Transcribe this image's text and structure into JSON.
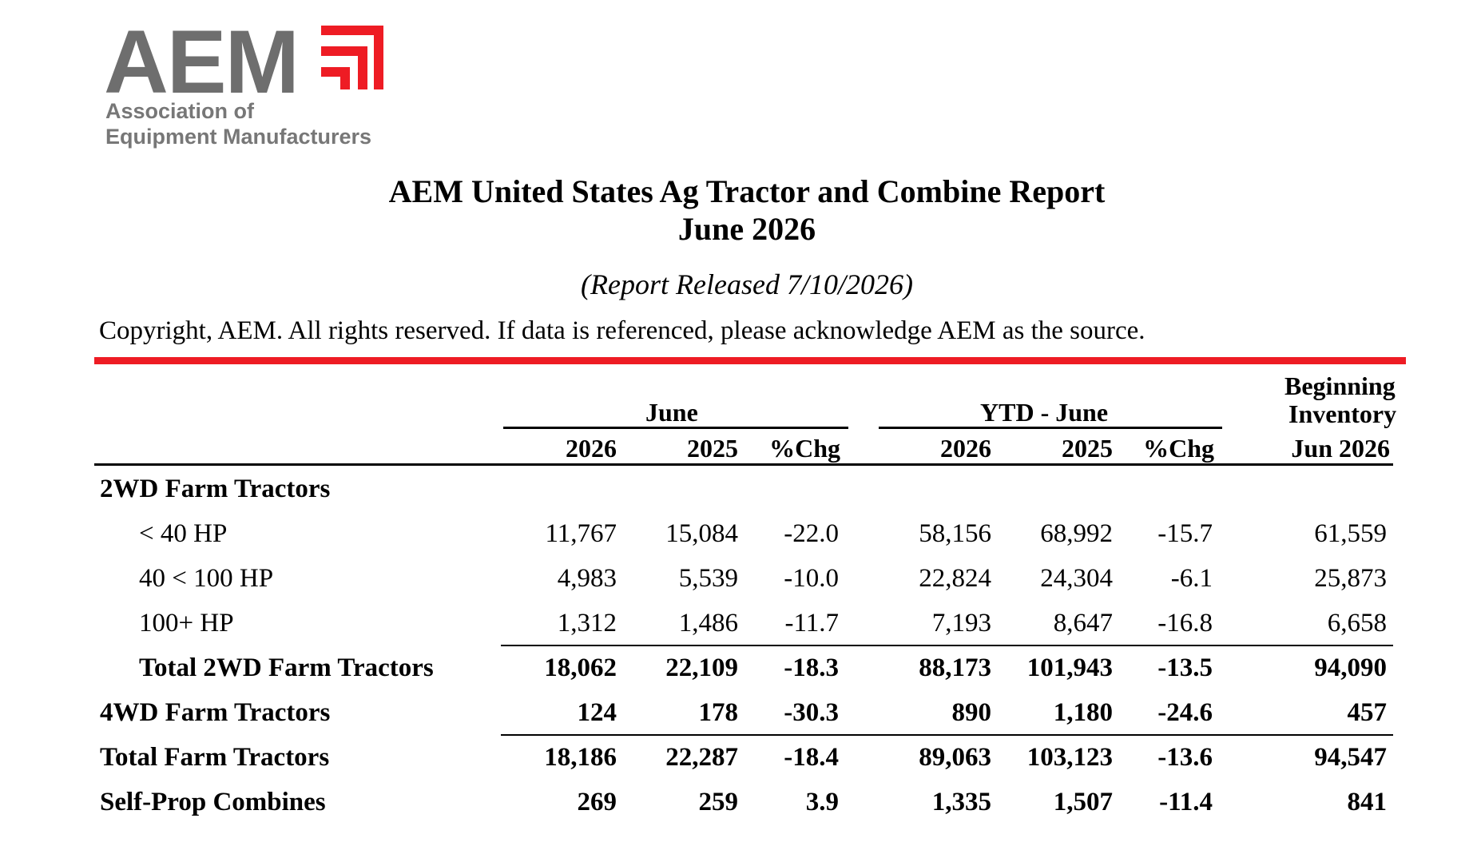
{
  "logo": {
    "word": "AEM",
    "line1": "Association of",
    "line2": "Equipment Manufacturers",
    "accent_color": "#ee1c24",
    "word_color": "#6e6e6e"
  },
  "report": {
    "title": "AEM United States Ag Tractor and Combine Report",
    "period": "June 2026",
    "released": "(Report Released 7/10/2026)",
    "copyright": "Copyright, AEM. All rights reserved. If data is referenced, please acknowledge AEM as the source."
  },
  "table": {
    "group_month": "June",
    "group_ytd": "YTD - June",
    "inventory_header_1": "Beginning",
    "inventory_header_2": "Inventory",
    "columns": [
      "2026",
      "2025",
      "%Chg",
      "2026",
      "2025",
      "%Chg",
      "Jun 2026"
    ],
    "rows": [
      {
        "label": "2WD Farm Tractors",
        "values": [
          "",
          "",
          "",
          "",
          "",
          "",
          ""
        ]
      },
      {
        "label": "< 40 HP",
        "values": [
          "11,767",
          "15,084",
          "-22.0",
          "58,156",
          "68,992",
          "-15.7",
          "61,559"
        ]
      },
      {
        "label": "40 < 100 HP",
        "values": [
          "4,983",
          "5,539",
          "-10.0",
          "22,824",
          "24,304",
          "-6.1",
          "25,873"
        ]
      },
      {
        "label": "100+ HP",
        "values": [
          "1,312",
          "1,486",
          "-11.7",
          "7,193",
          "8,647",
          "-16.8",
          "6,658"
        ]
      },
      {
        "label": "Total 2WD Farm Tractors",
        "values": [
          "18,062",
          "22,109",
          "-18.3",
          "88,173",
          "101,943",
          "-13.5",
          "94,090"
        ]
      },
      {
        "label": "4WD Farm Tractors",
        "values": [
          "124",
          "178",
          "-30.3",
          "890",
          "1,180",
          "-24.6",
          "457"
        ]
      },
      {
        "label": "Total Farm Tractors",
        "values": [
          "18,186",
          "22,287",
          "-18.4",
          "89,063",
          "103,123",
          "-13.6",
          "94,547"
        ]
      },
      {
        "label": "Self-Prop Combines",
        "values": [
          "269",
          "259",
          "3.9",
          "1,335",
          "1,507",
          "-11.4",
          "841"
        ]
      }
    ]
  }
}
